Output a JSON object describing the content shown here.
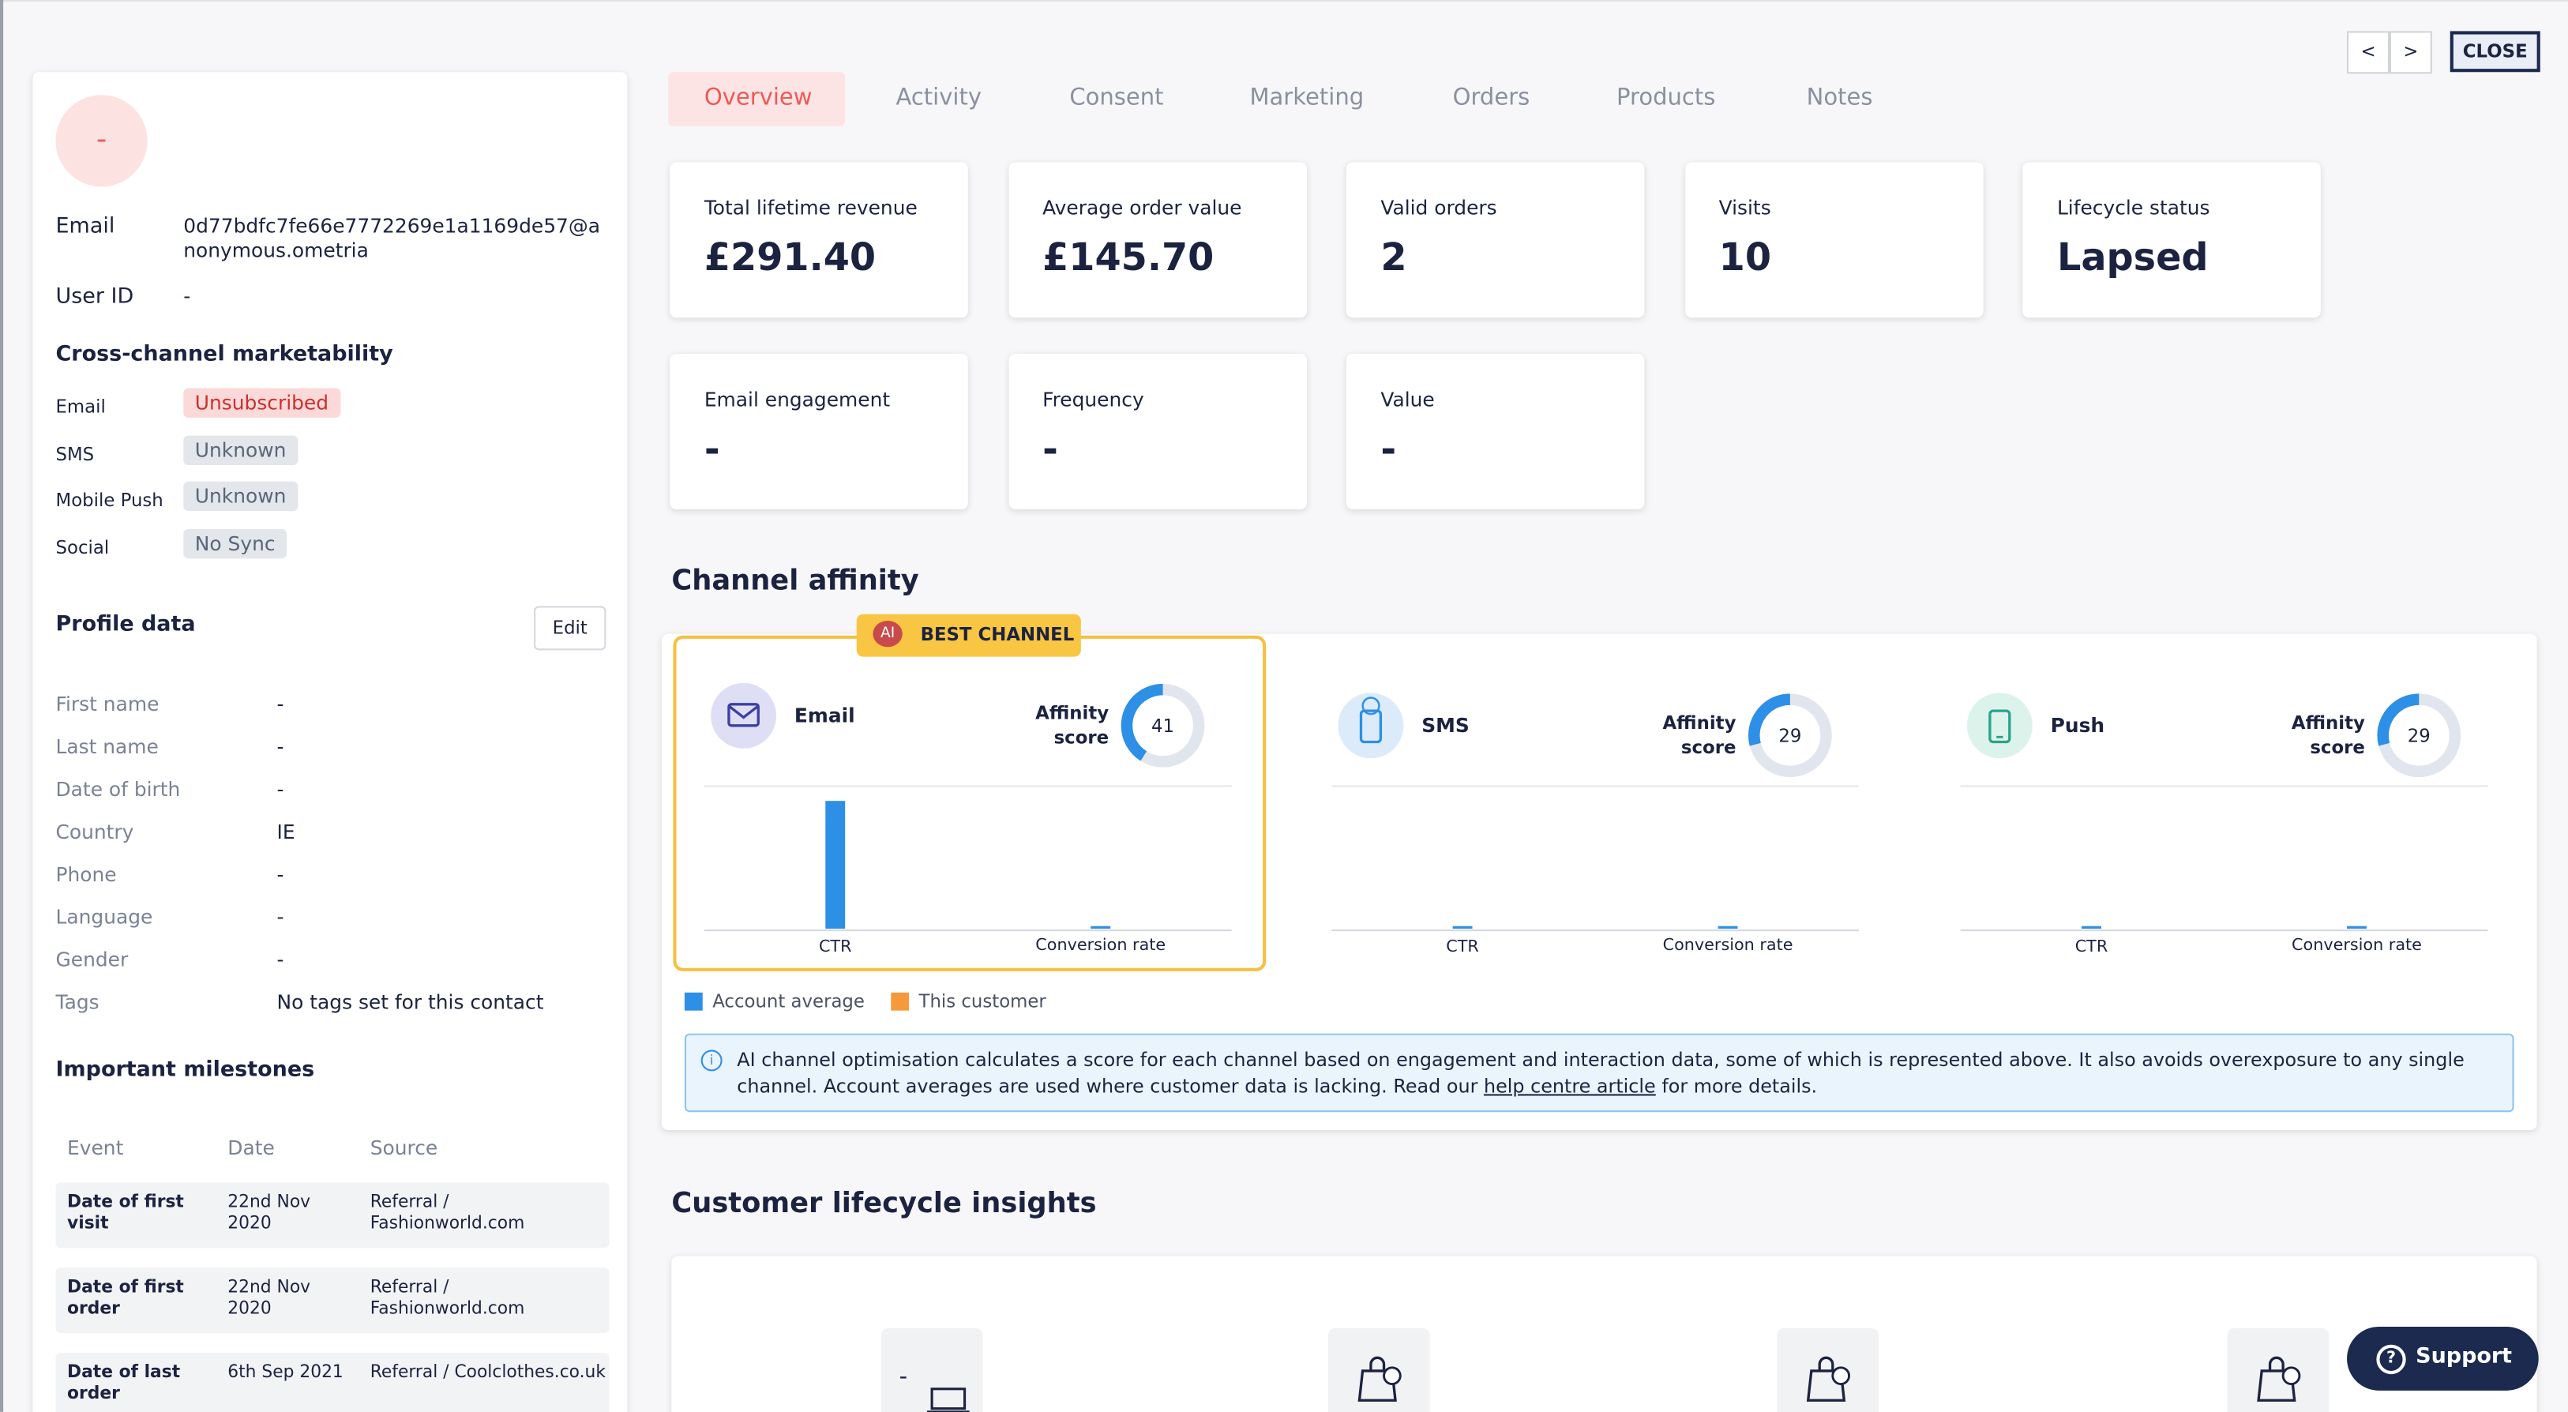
{
  "nav": {
    "prev": "<",
    "next": ">",
    "close": "CLOSE"
  },
  "profile": {
    "avatar": "-",
    "fields": [
      {
        "label": "Email",
        "value": "0d77bdfc7fe66e7772269e1a1169de57@anonymous.ometria"
      },
      {
        "label": "User ID",
        "value": "-"
      }
    ],
    "marketability": {
      "title": "Cross-channel marketability",
      "rows": [
        {
          "label": "Email",
          "status": "Unsubscribed"
        },
        {
          "label": "SMS",
          "status": "Unknown"
        },
        {
          "label": "Mobile Push",
          "status": "Unknown"
        },
        {
          "label": "Social",
          "status": "No Sync"
        }
      ]
    },
    "profile_data": {
      "title": "Profile data",
      "edit": "Edit",
      "rows": [
        {
          "label": "First name",
          "value": "-"
        },
        {
          "label": "Last name",
          "value": "-"
        },
        {
          "label": "Date of birth",
          "value": "-"
        },
        {
          "label": "Country",
          "value": "IE"
        },
        {
          "label": "Phone",
          "value": "-"
        },
        {
          "label": "Language",
          "value": "-"
        },
        {
          "label": "Gender",
          "value": "-"
        },
        {
          "label": "Tags",
          "value": "No tags set for this contact"
        }
      ]
    },
    "milestones": {
      "title": "Important milestones",
      "headers": [
        "Event",
        "Date",
        "Source"
      ],
      "rows": [
        [
          "Date of first visit",
          "22nd Nov 2020",
          "Referral / Fashionworld.com"
        ],
        [
          "Date of first order",
          "22nd Nov 2020",
          "Referral / Fashionworld.com"
        ],
        [
          "Date of last order",
          "6th Sep 2021",
          "Referral / Coolclothes.co.uk"
        ]
      ]
    }
  },
  "tabs": [
    "Overview",
    "Activity",
    "Consent",
    "Marketing",
    "Orders",
    "Products",
    "Notes"
  ],
  "active_tab": 0,
  "kpis": [
    {
      "label": "Total lifetime revenue",
      "value": "£291.40"
    },
    {
      "label": "Average order value",
      "value": "£145.70"
    },
    {
      "label": "Valid orders",
      "value": "2"
    },
    {
      "label": "Visits",
      "value": "10"
    },
    {
      "label": "Lifecycle status",
      "value": "Lapsed"
    },
    {
      "label": "Email engagement",
      "value": "-"
    },
    {
      "label": "Frequency",
      "value": "-"
    },
    {
      "label": "Value",
      "value": "-"
    }
  ],
  "channel_affinity": {
    "title": "Channel affinity",
    "badge_icon": "AI",
    "badge": "BEST CHANNEL",
    "channels": [
      {
        "name": "Email",
        "score_label": "Affinity score",
        "score": 41,
        "metrics": [
          {
            "label": "CTR",
            "account_average": 2.5
          },
          {
            "label": "Conversion rate",
            "account_average": 0.05
          }
        ]
      },
      {
        "name": "SMS",
        "score_label": "Affinity score",
        "score": 29,
        "metrics": [
          {
            "label": "CTR",
            "account_average": 0.05
          },
          {
            "label": "Conversion rate",
            "account_average": 0.05
          }
        ]
      },
      {
        "name": "Push",
        "score_label": "Affinity score",
        "score": 29,
        "metrics": [
          {
            "label": "CTR",
            "account_average": 0.05
          },
          {
            "label": "Conversion rate",
            "account_average": 0.05
          }
        ]
      }
    ],
    "legend": [
      {
        "name": "Account average",
        "color": "#2d8fe6"
      },
      {
        "name": "This customer",
        "color": "#f59a3a"
      }
    ],
    "info": {
      "before": "AI channel optimisation calculates a score for each channel based on engagement and interaction data, some of which is represented above. It also avoids overexposure to any single channel. Account averages are used where customer data is lacking. Read our ",
      "link": "help centre article",
      "after": " for more details."
    }
  },
  "lifecycle": {
    "title": "Customer lifecycle insights",
    "first": "-"
  },
  "support": "Support"
}
